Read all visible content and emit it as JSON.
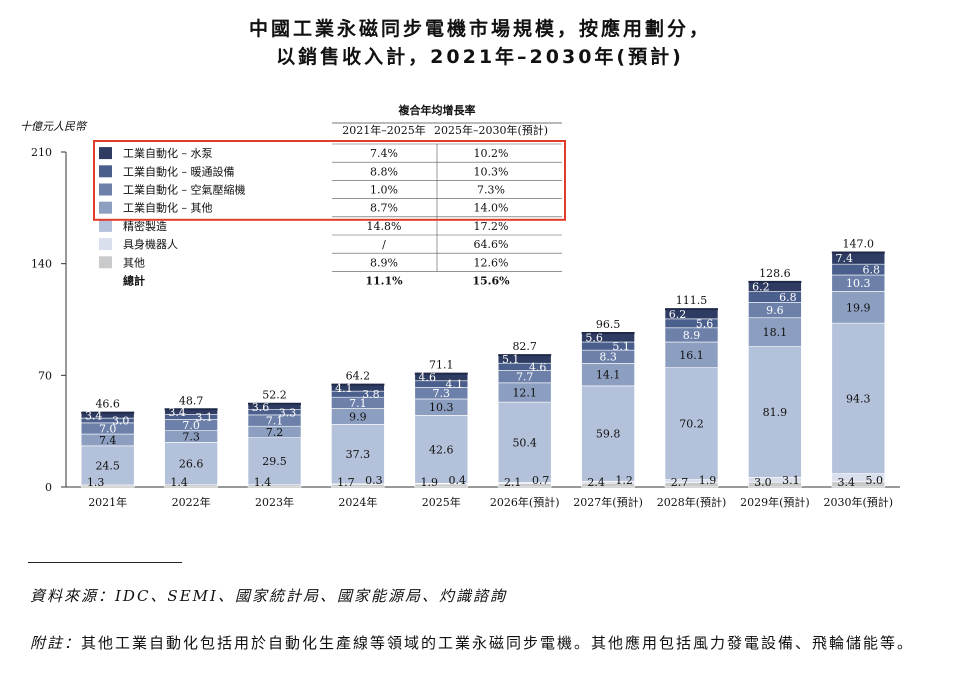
{
  "title_line1": "中國工業永磁同步電機市場規模，按應用劃分，",
  "title_line2": "以銷售收入計，2021年–2030年(預計)",
  "source": "資料來源：IDC、SEMI、國家統計局、國家能源局、灼識諮詢",
  "footnote_label": "附註：",
  "footnote_text": "其他工業自動化包括用於自動化生產線等領域的工業永磁同步電機。其他應用包括風力發電設備、飛輪儲能等。",
  "chart_data": {
    "type": "bar",
    "stacked": true,
    "ylabel": "十億元人民幣",
    "ylim": [
      0,
      210
    ],
    "yticks": [
      0,
      70,
      140,
      210
    ],
    "categories": [
      "2021年",
      "2022年",
      "2023年",
      "2024年",
      "2025年",
      "2026年(預計)",
      "2027年(預計)",
      "2028年(預計)",
      "2029年(預計)",
      "2030年(預計)"
    ],
    "series": [
      {
        "name": "其他",
        "color": "#c9cacb",
        "values": [
          1.3,
          1.4,
          1.4,
          1.7,
          1.9,
          2.1,
          2.4,
          2.7,
          3.0,
          3.4
        ]
      },
      {
        "name": "具身機器人",
        "color": "#d9dfed",
        "values": [
          0,
          0,
          0,
          0.3,
          0.4,
          0.7,
          1.2,
          1.9,
          3.1,
          5.0
        ]
      },
      {
        "name": "精密製造",
        "color": "#b4c1da",
        "values": [
          24.5,
          26.6,
          29.5,
          37.3,
          42.6,
          50.4,
          59.8,
          70.2,
          81.9,
          94.3
        ]
      },
      {
        "name": "工業自動化 – 其他",
        "color": "#8d9fc1",
        "values": [
          7.4,
          7.3,
          7.2,
          9.9,
          10.3,
          12.1,
          14.1,
          16.1,
          18.1,
          19.9
        ]
      },
      {
        "name": "工業自動化 – 空氣壓縮機",
        "color": "#6c80aa",
        "values": [
          7.0,
          7.0,
          7.1,
          7.1,
          7.3,
          7.7,
          8.3,
          8.9,
          9.6,
          10.3
        ]
      },
      {
        "name": "工業自動化 – 暖通設備",
        "color": "#4b5f8d",
        "values": [
          3.0,
          3.1,
          3.3,
          3.8,
          4.1,
          4.6,
          5.1,
          5.6,
          6.8,
          6.8
        ]
      },
      {
        "name": "工業自動化 – 水泵",
        "color": "#2e3c63",
        "values": [
          3.4,
          3.4,
          3.6,
          4.1,
          4.6,
          5.1,
          5.6,
          6.2,
          6.2,
          7.4
        ]
      }
    ],
    "totals": [
      46.6,
      48.7,
      52.2,
      64.2,
      71.1,
      82.7,
      96.5,
      111.5,
      128.6,
      147.0
    ],
    "totals_label": "總計",
    "cagr_table": {
      "title": "複合年均增長率",
      "columns": [
        "2021年–2025年",
        "2025年–2030年(預計)"
      ],
      "rows": [
        {
          "label": "工業自動化 – 水泵",
          "values": [
            "7.4%",
            "10.2%"
          ]
        },
        {
          "label": "工業自動化 – 暖通設備",
          "values": [
            "8.8%",
            "10.3%"
          ]
        },
        {
          "label": "工業自動化 – 空氣壓縮機",
          "values": [
            "1.0%",
            "7.3%"
          ]
        },
        {
          "label": "工業自動化 – 其他",
          "values": [
            "8.7%",
            "14.0%"
          ]
        },
        {
          "label": "精密製造",
          "values": [
            "14.8%",
            "17.2%"
          ]
        },
        {
          "label": "具身機器人",
          "values": [
            "/",
            "64.6%"
          ]
        },
        {
          "label": "其他",
          "values": [
            "8.9%",
            "12.6%"
          ]
        },
        {
          "label": "總計",
          "values": [
            "11.1%",
            "15.6%"
          ]
        }
      ]
    },
    "highlight_rows": 4,
    "highlight_color": "#e03c2c",
    "grid": false,
    "legend": "top-left"
  }
}
